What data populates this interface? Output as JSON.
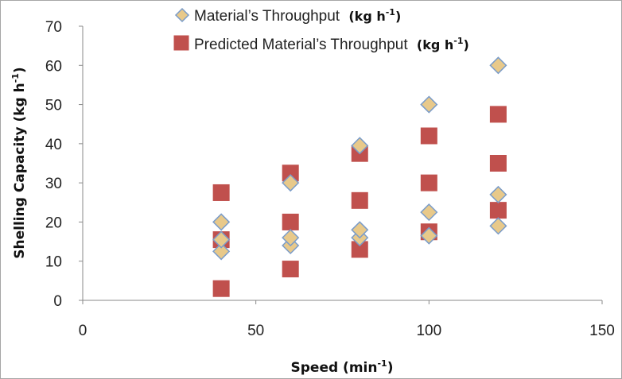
{
  "chart_data": {
    "type": "scatter",
    "xlabel": "Speed (min",
    "xlabel_sup": "-1",
    "xlabel_close": ")",
    "ylabel": "Shelling Capacity  (kg h",
    "ylabel_sup": "-1",
    "ylabel_close": ")",
    "xlim": [
      0,
      150
    ],
    "ylim": [
      0,
      70
    ],
    "x_ticks": [
      "0",
      "50",
      "100",
      "150"
    ],
    "y_ticks": [
      "0",
      "10",
      "20",
      "30",
      "40",
      "50",
      "60",
      "70"
    ],
    "grid": false,
    "legend_position": "top-right",
    "series": [
      {
        "name": "Material’s Throughput",
        "unit": "(kg h",
        "unit_sup": "-1",
        "unit_close": ")",
        "marker": "diamond",
        "fill": "#e8c98a",
        "stroke": "#7a9cc9",
        "points": [
          {
            "x": 40,
            "y": 12.5
          },
          {
            "x": 40,
            "y": 15.5
          },
          {
            "x": 40,
            "y": 20
          },
          {
            "x": 60,
            "y": 14
          },
          {
            "x": 60,
            "y": 16
          },
          {
            "x": 60,
            "y": 30
          },
          {
            "x": 80,
            "y": 16
          },
          {
            "x": 80,
            "y": 18
          },
          {
            "x": 80,
            "y": 39.5
          },
          {
            "x": 100,
            "y": 16.5
          },
          {
            "x": 100,
            "y": 22.5
          },
          {
            "x": 100,
            "y": 50
          },
          {
            "x": 120,
            "y": 19
          },
          {
            "x": 120,
            "y": 27
          },
          {
            "x": 120,
            "y": 60
          }
        ]
      },
      {
        "name": "Predicted Material’s Throughput",
        "unit": "(kg h",
        "unit_sup": "-1",
        "unit_close": ")",
        "marker": "square",
        "fill": "#c0504d",
        "stroke": "#c0504d",
        "points": [
          {
            "x": 40,
            "y": 3
          },
          {
            "x": 40,
            "y": 15.5
          },
          {
            "x": 40,
            "y": 27.5
          },
          {
            "x": 60,
            "y": 8
          },
          {
            "x": 60,
            "y": 20
          },
          {
            "x": 60,
            "y": 32.5
          },
          {
            "x": 80,
            "y": 13
          },
          {
            "x": 80,
            "y": 25.5
          },
          {
            "x": 80,
            "y": 37.5
          },
          {
            "x": 100,
            "y": 17.5
          },
          {
            "x": 100,
            "y": 30
          },
          {
            "x": 100,
            "y": 42
          },
          {
            "x": 120,
            "y": 23
          },
          {
            "x": 120,
            "y": 35
          },
          {
            "x": 120,
            "y": 47.5
          }
        ]
      }
    ]
  },
  "colors": {
    "axis": "#888888"
  }
}
